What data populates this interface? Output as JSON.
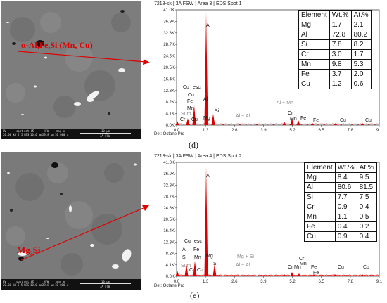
{
  "panels": [
    {
      "id": "d",
      "caption": "(d)",
      "phase_label": "α-Al,Fe,Si (Mn, Cu)",
      "sem": {
        "info_labels": [
          "HV",
          "spot",
          "det",
          "WD",
          "HFW",
          "mag ⊞",
          "10 μm"
        ],
        "info_values": [
          "20.00 kV",
          "5.5",
          "CBS",
          "10.0 mm",
          "29.8 μm",
          "10 000 x",
          "3A FSW"
        ]
      },
      "eds": {
        "header": "7218-sk | 3A FSW | Area 3 | EDS Spot 1",
        "footer": "Det: Octane Pro",
        "y_ticks": [
          "41.0K",
          "36.9K",
          "32.8K",
          "28.7K",
          "24.6K",
          "20.5K",
          "16.4K",
          "12.3K",
          "8.2K",
          "4.1K",
          "0.0K"
        ],
        "x_ticks": [
          "0.0",
          "1.3",
          "2.6",
          "3.9",
          "5.2",
          "6.5",
          "7.8",
          "9.1"
        ],
        "peak_labels": [
          "Al",
          "Cu",
          "esc",
          "Cu",
          "Al",
          "Fe",
          "Mn",
          "Sum",
          "Cr",
          "Cu",
          "Mg",
          "Si",
          "Al + Al",
          "Al + Mn",
          "Cr",
          "Mn",
          "Fe",
          "Fe",
          "Cu",
          "Cu"
        ]
      },
      "table": {
        "headers": [
          "Element",
          "Wt.%",
          "At.%"
        ],
        "rows": [
          [
            "Mg",
            "1.7",
            "2.1"
          ],
          [
            "Al",
            "72.8",
            "80.2"
          ],
          [
            "Si",
            "7.8",
            "8.2"
          ],
          [
            "Cr",
            "3.0",
            "1.7"
          ],
          [
            "Mn",
            "9.8",
            "5.3"
          ],
          [
            "Fe",
            "3.7",
            "2.0"
          ],
          [
            "Cu",
            "1.2",
            "0.6"
          ]
        ]
      }
    },
    {
      "id": "e",
      "caption": "(e)",
      "phase_label": "Mg₂Si",
      "sem": {
        "info_labels": [
          "HV",
          "spot",
          "det",
          "WD",
          "HFW",
          "mag ⊞",
          "10 μm"
        ],
        "info_values": [
          "20.00 kV",
          "5.5",
          "CBS",
          "10.0 mm",
          "29.8 μm",
          "10 000 x",
          "3A FSW"
        ]
      },
      "eds": {
        "header": "7218-sk | 3A FSW | Area 4 | EDS Spot 2",
        "footer": "Det: Octane Pro",
        "y_ticks": [
          "41.0K",
          "36.9K",
          "32.8K",
          "28.7K",
          "24.6K",
          "20.5K",
          "16.4K",
          "12.3K",
          "8.2K",
          "4.1K",
          "0.0K"
        ],
        "x_ticks": [
          "0.0",
          "1.3",
          "2.6",
          "3.9",
          "5.2",
          "6.5",
          "7.8",
          "9.1"
        ],
        "peak_labels": [
          "Al",
          "Cu",
          "esc",
          "Al",
          "Fe",
          "Si",
          "Mn",
          "Sum",
          "Cr",
          "Cu",
          "Mg",
          "Si",
          "Mg + Si",
          "Al + Al",
          "Cr",
          "Mn",
          "Cr",
          "Mn",
          "Fe",
          "Fe",
          "Cu",
          "Cu"
        ]
      },
      "table": {
        "headers": [
          "Element",
          "Wt.%",
          "At.%"
        ],
        "rows": [
          [
            "Mg",
            "8.4",
            "9.5"
          ],
          [
            "Al",
            "80.6",
            "81.5"
          ],
          [
            "Si",
            "7.7",
            "7.5"
          ],
          [
            "Cr",
            "0.9",
            "0.4"
          ],
          [
            "Mn",
            "1.1",
            "0.5"
          ],
          [
            "Fe",
            "0.4",
            "0.2"
          ],
          [
            "Cu",
            "0.9",
            "0.4"
          ]
        ]
      }
    }
  ],
  "colors": {
    "spectrum": "#dd0000",
    "arrow": "#e00000",
    "sem_background": "#7b7b7b"
  }
}
